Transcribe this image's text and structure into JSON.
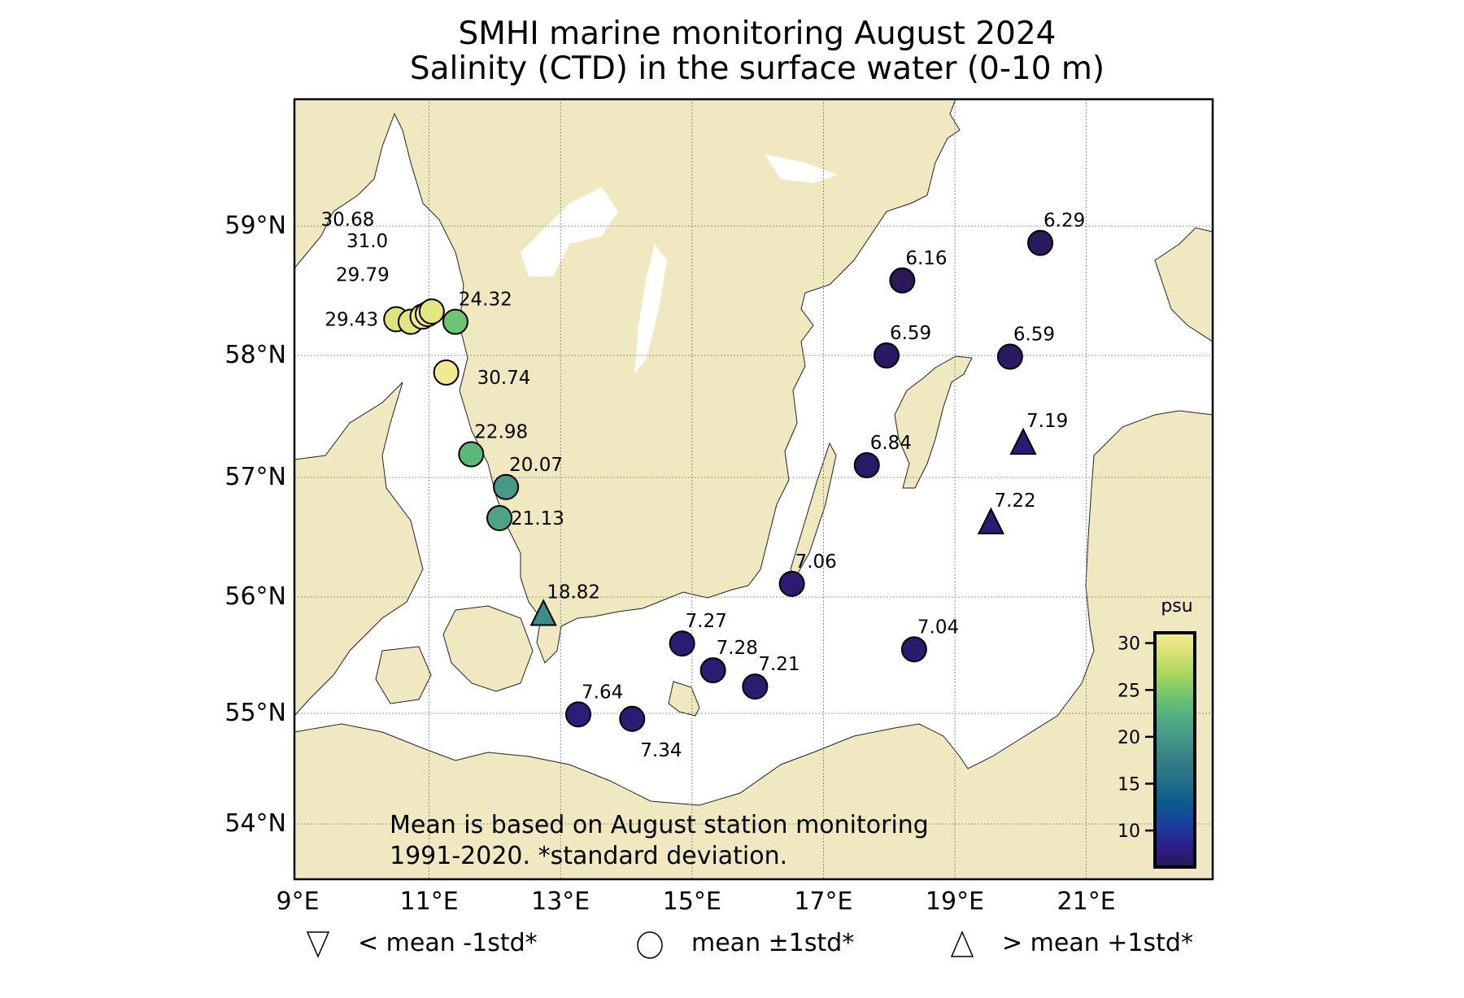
{
  "title_lines": [
    "SMHI marine monitoring August 2024",
    "Salinity (CTD) in the surface water (0-10 m)"
  ],
  "colors": {
    "land": "#f0e8c0",
    "sea": "#ffffff",
    "coastline": "#222222",
    "grid": "#888888",
    "marker_edge": "#000000"
  },
  "chart_data": {
    "type": "scatter",
    "title": "SMHI marine monitoring August 2024 / Salinity (CTD) in the surface water (0-10 m)",
    "xlabel": "",
    "ylabel": "",
    "xlim": [
      8.95,
      22.9
    ],
    "ylim": [
      53.5,
      60.0
    ],
    "grid": true,
    "x_ticks": [
      "9°E",
      "11°E",
      "13°E",
      "15°E",
      "17°E",
      "19°E",
      "21°E"
    ],
    "x_tick_values": [
      9,
      11,
      13,
      15,
      17,
      19,
      21
    ],
    "y_ticks": [
      "54°N",
      "55°N",
      "56°N",
      "57°N",
      "58°N",
      "59°N"
    ],
    "y_tick_values": [
      54,
      55,
      56,
      57,
      58,
      59
    ],
    "colorbar": {
      "label": "psu",
      "ticks": [
        "10",
        "15",
        "20",
        "25",
        "30"
      ],
      "tick_values": [
        10,
        15,
        20,
        25,
        30
      ],
      "range": [
        6.1,
        31.1
      ],
      "position": "bottom-right",
      "colormap": [
        "#2a1858",
        "#2e1e8c",
        "#1840a0",
        "#0e5a8e",
        "#23708a",
        "#357e86",
        "#44958a",
        "#51ad82",
        "#6ec472",
        "#a4d65e",
        "#d5e070",
        "#f6ec96"
      ]
    },
    "note_lines": [
      "Mean is based on August station monitoring",
      "1991-2020. *standard deviation."
    ],
    "legend": [
      {
        "marker": "triangle-down",
        "label": "< mean -1std*"
      },
      {
        "marker": "circle",
        "label": "mean ±1std*"
      },
      {
        "marker": "triangle-up",
        "label": "> mean +1std*"
      }
    ],
    "stations": [
      {
        "lon": 20.3,
        "lat": 58.87,
        "value": 6.29,
        "marker": "circle",
        "label": "6.29",
        "label_pos": "ne"
      },
      {
        "lon": 18.2,
        "lat": 58.58,
        "value": 6.16,
        "marker": "circle",
        "label": "6.16",
        "label_pos": "ne"
      },
      {
        "lon": 17.96,
        "lat": 58.0,
        "value": 6.59,
        "marker": "circle",
        "label": "6.59",
        "label_pos": "ne"
      },
      {
        "lon": 19.84,
        "lat": 57.99,
        "value": 6.59,
        "marker": "circle",
        "label": "6.59",
        "label_pos": "ne"
      },
      {
        "lon": 20.04,
        "lat": 57.28,
        "value": 7.19,
        "marker": "triangle-up",
        "label": "7.19",
        "label_pos": "ne"
      },
      {
        "lon": 17.66,
        "lat": 57.1,
        "value": 6.84,
        "marker": "circle",
        "label": "6.84",
        "label_pos": "ne"
      },
      {
        "lon": 19.55,
        "lat": 56.62,
        "value": 7.22,
        "marker": "triangle-up",
        "label": "7.22",
        "label_pos": "ne"
      },
      {
        "lon": 16.52,
        "lat": 56.11,
        "value": 7.06,
        "marker": "circle",
        "label": "7.06",
        "label_pos": "ne"
      },
      {
        "lon": 18.38,
        "lat": 55.55,
        "value": 7.04,
        "marker": "circle",
        "label": "7.04",
        "label_pos": "ne"
      },
      {
        "lon": 14.85,
        "lat": 55.6,
        "value": 7.27,
        "marker": "circle",
        "label": "7.27",
        "label_pos": "ne"
      },
      {
        "lon": 15.32,
        "lat": 55.37,
        "value": 7.28,
        "marker": "circle",
        "label": "7.28",
        "label_pos": "ne"
      },
      {
        "lon": 15.96,
        "lat": 55.23,
        "value": 7.21,
        "marker": "circle",
        "label": "7.21",
        "label_pos": "ne"
      },
      {
        "lon": 13.27,
        "lat": 54.99,
        "value": 7.64,
        "marker": "circle",
        "label": "7.64",
        "label_pos": "ne"
      },
      {
        "lon": 14.09,
        "lat": 54.95,
        "value": 7.34,
        "marker": "circle",
        "label": "7.34",
        "label_pos": "below"
      },
      {
        "lon": 12.74,
        "lat": 55.85,
        "value": 18.82,
        "marker": "triangle-up",
        "label": "18.82",
        "label_pos": "ne"
      },
      {
        "lon": 12.07,
        "lat": 56.66,
        "value": 21.13,
        "marker": "circle",
        "label": "21.13",
        "label_pos": "e"
      },
      {
        "lon": 12.17,
        "lat": 56.92,
        "value": 20.07,
        "marker": "circle",
        "label": "20.07",
        "label_pos": "ne"
      },
      {
        "lon": 11.64,
        "lat": 57.19,
        "value": 22.98,
        "marker": "circle",
        "label": "22.98",
        "label_pos": "ne"
      },
      {
        "lon": 11.26,
        "lat": 57.86,
        "value": 30.74,
        "marker": "circle",
        "label": "30.74",
        "label_pos": "se"
      },
      {
        "lon": 11.4,
        "lat": 58.26,
        "value": 24.32,
        "marker": "circle",
        "label": "24.32",
        "label_pos": "ne"
      },
      {
        "lon": 10.5,
        "lat": 58.28,
        "value": 29.43,
        "marker": "circle",
        "label": "29.43",
        "label_pos": "w"
      },
      {
        "lon": 10.72,
        "lat": 58.26,
        "value": 29.79,
        "marker": "circle",
        "label": "29.79",
        "label_pos": "far-nw"
      },
      {
        "lon": 10.9,
        "lat": 58.3,
        "value": 30.68,
        "marker": "circle",
        "label": "30.68",
        "label_pos": "far-nnw"
      },
      {
        "lon": 10.98,
        "lat": 58.32,
        "value": 31.0,
        "marker": "circle",
        "label": "31.0",
        "label_pos": "far-n"
      },
      {
        "lon": 11.04,
        "lat": 58.34,
        "value": 29.8,
        "marker": "circle",
        "label": "",
        "label_pos": "none"
      }
    ]
  }
}
